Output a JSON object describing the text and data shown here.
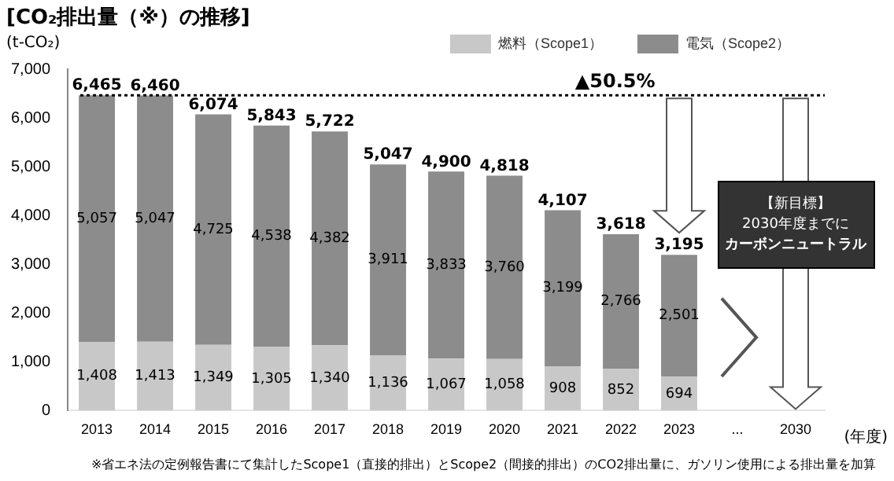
{
  "chart_data": {
    "type": "bar",
    "stacked": true,
    "title": "[CO₂排出量（※）の推移]",
    "ylabel": "(t-CO₂)",
    "xlabel": "(年度)",
    "categories": [
      "2013",
      "2014",
      "2015",
      "2016",
      "2017",
      "2018",
      "2019",
      "2020",
      "2021",
      "2022",
      "2023",
      "...",
      "2030"
    ],
    "series": [
      {
        "name": "燃料（Scope1）",
        "color": "#c8c8c8",
        "values": [
          1408,
          1413,
          1349,
          1305,
          1340,
          1136,
          1067,
          1058,
          908,
          852,
          694,
          null,
          null
        ],
        "value_labels": [
          "1,408",
          "1,413",
          "1,349",
          "1,305",
          "1,340",
          "1,136",
          "1,067",
          "1,058",
          "908",
          "852",
          "694",
          null,
          null
        ]
      },
      {
        "name": "電気（Scope2）",
        "color": "#8c8c8c",
        "values": [
          5057,
          5047,
          4725,
          4538,
          4382,
          3911,
          3833,
          3760,
          3199,
          2766,
          2501,
          null,
          null
        ],
        "value_labels": [
          "5,057",
          "5,047",
          "4,725",
          "4,538",
          "4,382",
          "3,911",
          "3,833",
          "3,760",
          "3,199",
          "2,766",
          "2,501",
          null,
          null
        ]
      }
    ],
    "totals": [
      "6,465",
      "6,460",
      "6,074",
      "5,843",
      "5,722",
      "5,047",
      "4,900",
      "4,818",
      "4,107",
      "3,618",
      "3,195",
      null,
      null
    ],
    "ylim": [
      0,
      7000
    ],
    "yticks": [
      0,
      {
        "value": 1000,
        "label": "1,000"
      },
      {
        "value": 2000,
        "label": "2,000"
      },
      {
        "value": 3000,
        "label": "3,000"
      },
      {
        "value": 4000,
        "label": "4,000"
      },
      {
        "value": 5000,
        "label": "5,000"
      },
      {
        "value": 6000,
        "label": "6,000"
      },
      {
        "value": 7000,
        "label": "7,000"
      }
    ],
    "grid": false,
    "legend": "top right",
    "ref_lines": [
      {
        "axis": "y",
        "value": 6465,
        "label": "▲50.5%",
        "color": "#000000",
        "line_style": "dotted"
      }
    ],
    "annotations": [
      "【新目標】",
      "2030年度までに",
      "カーボンニュートラル",
      "※省エネ法の定例報告書にて集計したScope1（直接的排出）とScope2（間接的排出）のCO2排出量に、ガソリン使用による排出量を加算"
    ]
  }
}
